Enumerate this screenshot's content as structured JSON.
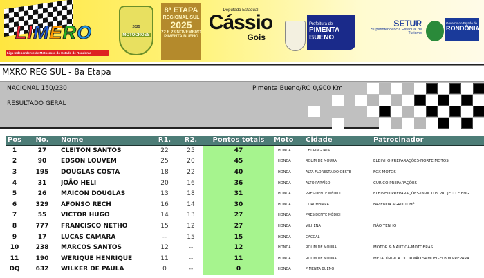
{
  "banner": {
    "limero": {
      "word": "LIMERO",
      "subtitle": "Liga Independente de Motocross do Estado de Rondonia"
    },
    "motocross": {
      "year": "2025",
      "word": "MOTOCROSS",
      "sub": "REGIONAL SUL"
    },
    "etapa": {
      "line1": "8ª ETAPA",
      "line2": "REGIONAL SUL",
      "line3": "2025",
      "line4": "22 E 23 NOVEMBRO",
      "line5": "PIMENTA BUENO"
    },
    "cassio": {
      "label": "Deputado Estadual",
      "name": "Cássio",
      "surname": "Gois"
    },
    "pimenta": {
      "line1": "Prefeitura de",
      "line2": "PIMENTA BUENO"
    },
    "setur": {
      "line1": "SETUR",
      "line2": "Superintendência Estadual de",
      "line3": "Turismo"
    },
    "rondonia": {
      "line1": "Governo do Estado de",
      "line2": "RONDÔNIA"
    }
  },
  "title": "MXRO REG SUL - 8a Etapa",
  "info": {
    "category": "NACIONAL 150/230",
    "location": "Pimenta Bueno/RO 0,900 Km",
    "result_type": "RESULTADO GERAL"
  },
  "colors": {
    "header": "#4d7d77",
    "points": "#a6f48e",
    "infobox": "#c0c0c0"
  },
  "table": {
    "headers": [
      "Pos",
      "No.",
      "Nome",
      "R1.",
      "R2.",
      "Pontos totais",
      "Moto",
      "Cidade",
      "Patrocinador"
    ],
    "rows": [
      [
        "1",
        "27",
        "CLEITON SANTOS",
        "22",
        "25",
        "47",
        "HONDA",
        "CHUPINGUAIA",
        ""
      ],
      [
        "2",
        "90",
        "EDSON LOUVEM",
        "25",
        "20",
        "45",
        "HONDA",
        "ROLIM DE MOURA",
        "ELBINHO PREPARAÇÕES-NORTE MOTOS"
      ],
      [
        "3",
        "195",
        "DOUGLAS COSTA",
        "18",
        "22",
        "40",
        "HONDA",
        "ALTA FLORESTA DO OESTE",
        "FOX MOTOS"
      ],
      [
        "4",
        "31",
        "JOÃO HELI",
        "20",
        "16",
        "36",
        "HONDA",
        "ALTO PARAÍSO",
        "CURICO PREPARAÇÕES"
      ],
      [
        "5",
        "26",
        "MAICON DOUGLAS",
        "13",
        "18",
        "31",
        "HONDA",
        "PRESIDENTE MÉDICI",
        "ELBINHO PREPARAÇÕES-INVICTUS PROJETO E ENG"
      ],
      [
        "6",
        "329",
        "AFONSO RECH",
        "16",
        "14",
        "30",
        "HONDA",
        "CORUMBIARA",
        "FAZENDA AGRO TCHÊ"
      ],
      [
        "7",
        "55",
        "VICTOR HUGO",
        "14",
        "13",
        "27",
        "HONDA",
        "PRESIDENTE MÉDICI",
        ""
      ],
      [
        "8",
        "777",
        "FRANCISCO NETHO",
        "15",
        "12",
        "27",
        "HONDA",
        "VILHENA",
        "NÃO TENHO"
      ],
      [
        "9",
        "17",
        "LUCAS CAMARA",
        "--",
        "15",
        "15",
        "HONDA",
        "CACOAL",
        ""
      ],
      [
        "10",
        "238",
        "MARCOS SANTOS",
        "12",
        "--",
        "12",
        "HONDA",
        "ROLIM DE MOURA",
        "MOTOR & NAUTICA-MOTOBRAS"
      ],
      [
        "11",
        "190",
        "WERIQUE HENRIQUE",
        "11",
        "--",
        "11",
        "HONDA",
        "ROLIM DE MOURA",
        "METALÚRGICA DO IRMÃO SAMUEL-ELBIM PREPARA"
      ],
      [
        "DQ",
        "632",
        "WILKER DE PAULA",
        "0",
        "--",
        "0",
        "HONDA",
        "PIMENTA BUENO",
        ""
      ]
    ]
  }
}
